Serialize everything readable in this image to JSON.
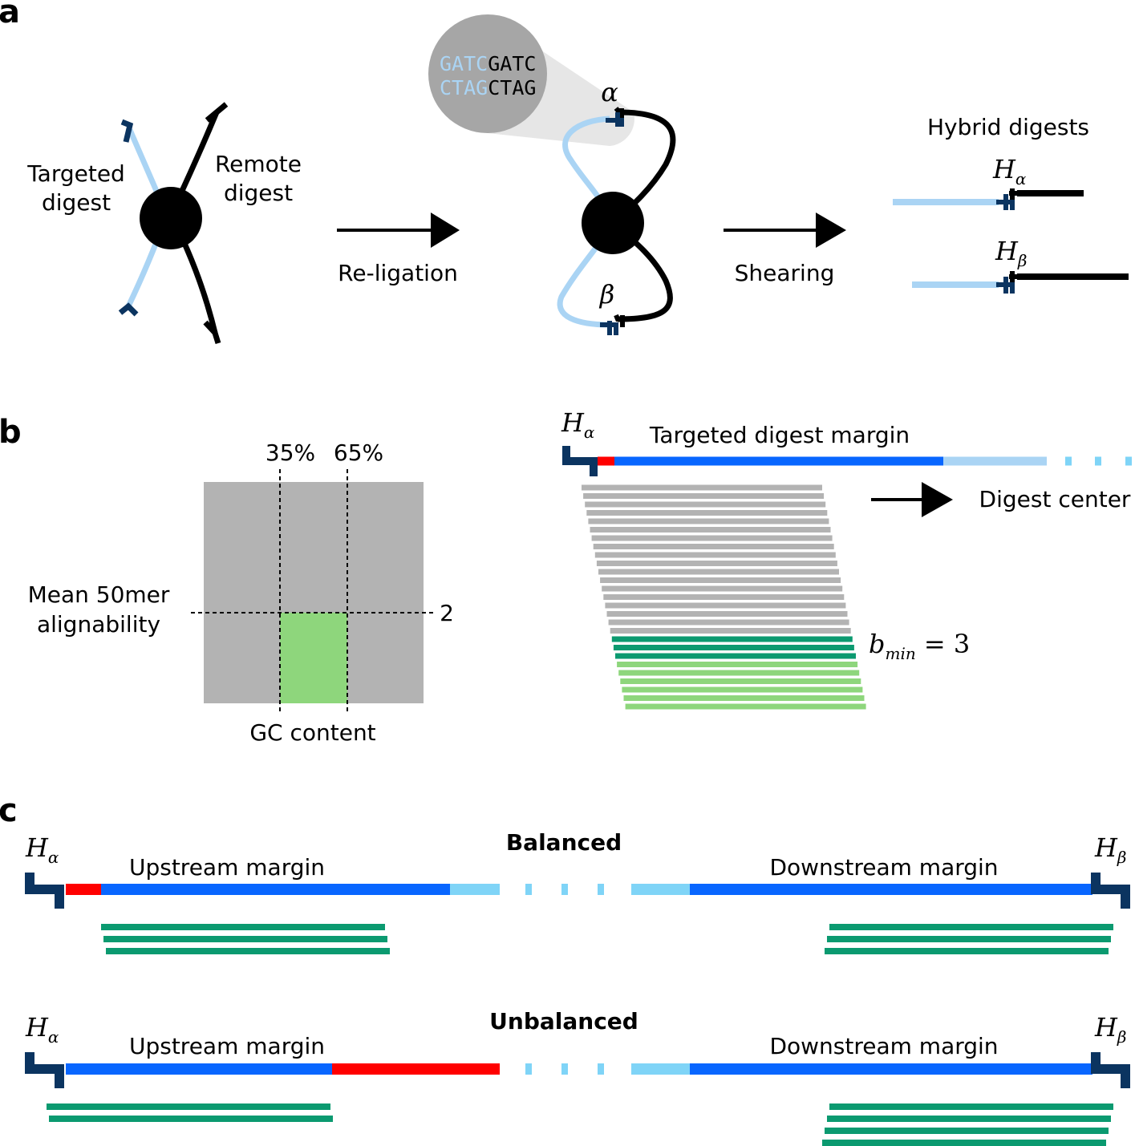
{
  "panels": {
    "a": "a",
    "b": "b",
    "c": "c"
  },
  "panel_a": {
    "targeted_digest_line1": "Targeted",
    "targeted_digest_line2": "digest",
    "remote_digest_line1": "Remote",
    "remote_digest_line2": "digest",
    "religation_label": "Re-ligation",
    "shearing_label": "Shearing",
    "hybrid_digests_label": "Hybrid digests",
    "seq_top_light": "GATC",
    "seq_top_dark": "GATC",
    "seq_bottom_light": "CTAG",
    "seq_bottom_dark": "CTAG",
    "alpha": "α",
    "beta": "β",
    "H": "H",
    "sub_alpha": "α",
    "sub_beta": "β"
  },
  "panel_b": {
    "pct_35": "35%",
    "pct_65": "65%",
    "ylabel_line1": "Mean 50mer",
    "ylabel_line2": "alignability",
    "threshold": "2",
    "xlabel": "GC content",
    "H": "H",
    "sub_alpha": "α",
    "margin_label": "Targeted digest margin",
    "digest_center_label": "Digest center",
    "bmin_b": "b",
    "bmin_sub": "min",
    "bmin_rest": " = 3"
  },
  "panel_c": {
    "balanced_label": "Balanced",
    "unbalanced_label": "Unbalanced",
    "upstream_label": "Upstream margin",
    "downstream_label": "Downstream margin",
    "H": "H",
    "sub_alpha": "α",
    "sub_beta": "β"
  },
  "colors": {
    "dark_navy": "#0b3460",
    "light_blue": "#aad4f4",
    "blue": "#0866ff",
    "sky": "#7fd4f7",
    "red": "#ff0000",
    "teal": "#0b9a70",
    "light_green": "#8ed67c",
    "gray": "#b3b3b3",
    "seq_gray": "#a6a6a6"
  }
}
